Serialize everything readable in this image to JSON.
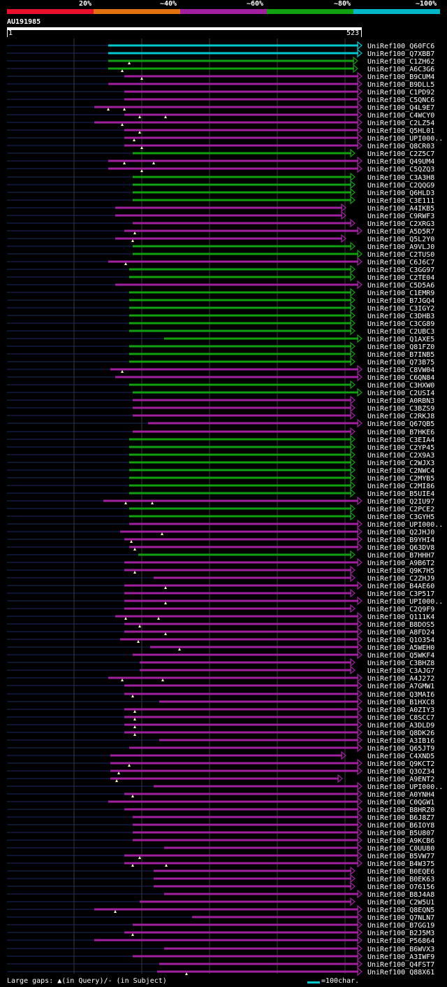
{
  "legend": [
    {
      "label": "20%",
      "color": "#e8102a"
    },
    {
      "label": "~40%",
      "color": "#e07010"
    },
    {
      "label": "~60%",
      "color": "#a020a0"
    },
    {
      "label": "~80%",
      "color": "#10a010"
    },
    {
      "label": "~100%",
      "color": "#00b8c8"
    }
  ],
  "query": {
    "name": "AU191985",
    "start": "1",
    "end": "523"
  },
  "footer": {
    "gaps_text": "Large gaps: ▲(in Query)/- (in Subject)",
    "scale_text": "=100char."
  },
  "hits": [
    {
      "label": "UniRef100_Q60FC6",
      "color": "#00c8d0",
      "s": 155,
      "e": 518,
      "m": []
    },
    {
      "label": "UniRef100_Q7XBB7",
      "color": "#00c8d0",
      "s": 155,
      "e": 518,
      "m": []
    },
    {
      "label": "UniRef100_C1ZH62",
      "color": "#10a010",
      "s": 155,
      "e": 512,
      "m": [
        185
      ]
    },
    {
      "label": "UniRef100_A6C3G6",
      "color": "#10a010",
      "s": 155,
      "e": 512,
      "m": [
        175
      ]
    },
    {
      "label": "UniRef100_B9CUM4",
      "color": "#a020a0",
      "s": 178,
      "e": 518,
      "m": [
        203
      ]
    },
    {
      "label": "UniRef100_B9DLL5",
      "color": "#a020a0",
      "s": 155,
      "e": 518,
      "m": []
    },
    {
      "label": "UniRef100_C1PD92",
      "color": "#a020a0",
      "s": 178,
      "e": 518,
      "m": []
    },
    {
      "label": "UniRef100_C5QNC6",
      "color": "#a020a0",
      "s": 178,
      "e": 518,
      "m": []
    },
    {
      "label": "UniRef100_Q4L9E7",
      "color": "#a020a0",
      "s": 135,
      "e": 518,
      "m": [
        155,
        178
      ]
    },
    {
      "label": "UniRef100_C4WCY0",
      "color": "#a020a0",
      "s": 178,
      "e": 518,
      "m": [
        200,
        237
      ]
    },
    {
      "label": "UniRef100_C2LZ54",
      "color": "#a020a0",
      "s": 135,
      "e": 518,
      "m": [
        175
      ]
    },
    {
      "label": "UniRef100_Q5HL01",
      "color": "#a020a0",
      "s": 178,
      "e": 518,
      "m": [
        200
      ]
    },
    {
      "label": "UniRef100_UPI000..",
      "color": "#a020a0",
      "s": 178,
      "e": 518,
      "m": [
        192
      ]
    },
    {
      "label": "UniRef100_Q8CR03",
      "color": "#a020a0",
      "s": 178,
      "e": 518,
      "m": [
        203
      ]
    },
    {
      "label": "UniRef100_C2Z5C7",
      "color": "#10a010",
      "s": 190,
      "e": 508,
      "m": []
    },
    {
      "label": "UniRef100_Q49UM4",
      "color": "#a020a0",
      "s": 155,
      "e": 518,
      "m": [
        178,
        220
      ]
    },
    {
      "label": "UniRef100_C5QZQ3",
      "color": "#a020a0",
      "s": 155,
      "e": 518,
      "m": [
        203
      ]
    },
    {
      "label": "UniRef100_C3A3H8",
      "color": "#10a010",
      "s": 190,
      "e": 508,
      "m": []
    },
    {
      "label": "UniRef100_C2QQG9",
      "color": "#10a010",
      "s": 190,
      "e": 508,
      "m": []
    },
    {
      "label": "UniRef100_Q6HLD3",
      "color": "#10a010",
      "s": 190,
      "e": 508,
      "m": []
    },
    {
      "label": "UniRef100_C3E111",
      "color": "#10a010",
      "s": 190,
      "e": 508,
      "m": []
    },
    {
      "label": "UniRef100_A4IKB5",
      "color": "#a020a0",
      "s": 165,
      "e": 495,
      "m": []
    },
    {
      "label": "UniRef100_C9RWF3",
      "color": "#a020a0",
      "s": 165,
      "e": 495,
      "m": []
    },
    {
      "label": "UniRef100_C2XRG3",
      "color": "#a020a0",
      "s": 190,
      "e": 508,
      "m": []
    },
    {
      "label": "UniRef100_A5D5R7",
      "color": "#a020a0",
      "s": 178,
      "e": 518,
      "m": [
        193
      ]
    },
    {
      "label": "UniRef100_Q5L2Y0",
      "color": "#a020a0",
      "s": 165,
      "e": 495,
      "m": [
        190
      ]
    },
    {
      "label": "UniRef100_A9VLJ0",
      "color": "#10a010",
      "s": 190,
      "e": 508,
      "m": []
    },
    {
      "label": "UniRef100_C2TUS0",
      "color": "#10a010",
      "s": 190,
      "e": 518,
      "m": []
    },
    {
      "label": "UniRef100_C6J6C7",
      "color": "#a020a0",
      "s": 155,
      "e": 518,
      "m": [
        180
      ]
    },
    {
      "label": "UniRef100_C3GG97",
      "color": "#10a010",
      "s": 185,
      "e": 508,
      "m": []
    },
    {
      "label": "UniRef100_C2TE04",
      "color": "#10a010",
      "s": 185,
      "e": 508,
      "m": []
    },
    {
      "label": "UniRef100_C5D5A6",
      "color": "#a020a0",
      "s": 165,
      "e": 518,
      "m": []
    },
    {
      "label": "UniRef100_C1EMR9",
      "color": "#10a010",
      "s": 185,
      "e": 508,
      "m": []
    },
    {
      "label": "UniRef100_B7JGQ4",
      "color": "#10a010",
      "s": 185,
      "e": 508,
      "m": []
    },
    {
      "label": "UniRef100_C3IGY2",
      "color": "#10a010",
      "s": 185,
      "e": 508,
      "m": []
    },
    {
      "label": "UniRef100_C3DHB3",
      "color": "#10a010",
      "s": 185,
      "e": 508,
      "m": []
    },
    {
      "label": "UniRef100_C3CG89",
      "color": "#10a010",
      "s": 185,
      "e": 508,
      "m": []
    },
    {
      "label": "UniRef100_C2UBC3",
      "color": "#10a010",
      "s": 185,
      "e": 508,
      "m": []
    },
    {
      "label": "UniRef100_Q1AXE5",
      "color": "#10a010",
      "s": 235,
      "e": 518,
      "m": []
    },
    {
      "label": "UniRef100_Q81FZ0",
      "color": "#10a010",
      "s": 185,
      "e": 508,
      "m": []
    },
    {
      "label": "UniRef100_B7INB5",
      "color": "#10a010",
      "s": 185,
      "e": 508,
      "m": []
    },
    {
      "label": "UniRef100_Q73B75",
      "color": "#10a010",
      "s": 185,
      "e": 508,
      "m": []
    },
    {
      "label": "UniRef100_C8VW04",
      "color": "#a020a0",
      "s": 158,
      "e": 518,
      "m": [
        175
      ]
    },
    {
      "label": "UniRef100_C6QN84",
      "color": "#a020a0",
      "s": 165,
      "e": 518,
      "m": []
    },
    {
      "label": "UniRef100_C3HXW0",
      "color": "#10a010",
      "s": 185,
      "e": 508,
      "m": []
    },
    {
      "label": "UniRef100_C2USI4",
      "color": "#10a010",
      "s": 190,
      "e": 518,
      "m": []
    },
    {
      "label": "UniRef100_A0RBN3",
      "color": "#a020a0",
      "s": 190,
      "e": 508,
      "m": []
    },
    {
      "label": "UniRef100_C3BZS9",
      "color": "#a020a0",
      "s": 190,
      "e": 508,
      "m": []
    },
    {
      "label": "UniRef100_C2RKJ8",
      "color": "#a020a0",
      "s": 190,
      "e": 508,
      "m": []
    },
    {
      "label": "UniRef100_Q67QB5",
      "color": "#a020a0",
      "s": 212,
      "e": 518,
      "m": []
    },
    {
      "label": "UniRef100_B7HKE6",
      "color": "#a020a0",
      "s": 190,
      "e": 508,
      "m": []
    },
    {
      "label": "UniRef100_C3EIA4",
      "color": "#10a010",
      "s": 185,
      "e": 508,
      "m": []
    },
    {
      "label": "UniRef100_C2YP45",
      "color": "#10a010",
      "s": 185,
      "e": 508,
      "m": []
    },
    {
      "label": "UniRef100_C2X9A3",
      "color": "#10a010",
      "s": 185,
      "e": 508,
      "m": []
    },
    {
      "label": "UniRef100_C2WJX3",
      "color": "#10a010",
      "s": 185,
      "e": 508,
      "m": []
    },
    {
      "label": "UniRef100_C2NWC4",
      "color": "#10a010",
      "s": 185,
      "e": 508,
      "m": []
    },
    {
      "label": "UniRef100_C2MYB5",
      "color": "#10a010",
      "s": 185,
      "e": 508,
      "m": []
    },
    {
      "label": "UniRef100_C2MI86",
      "color": "#10a010",
      "s": 185,
      "e": 508,
      "m": []
    },
    {
      "label": "UniRef100_B5UIE4",
      "color": "#10a010",
      "s": 185,
      "e": 508,
      "m": []
    },
    {
      "label": "UniRef100_Q2IU97",
      "color": "#a020a0",
      "s": 148,
      "e": 518,
      "m": [
        180,
        218
      ]
    },
    {
      "label": "UniRef100_C2PCE2",
      "color": "#10a010",
      "s": 185,
      "e": 508,
      "m": []
    },
    {
      "label": "UniRef100_C3GYH5",
      "color": "#10a010",
      "s": 185,
      "e": 508,
      "m": []
    },
    {
      "label": "UniRef100_UPI000..",
      "color": "#a020a0",
      "s": 185,
      "e": 518,
      "m": []
    },
    {
      "label": "UniRef100_Q2JHJ0",
      "color": "#a020a0",
      "s": 172,
      "e": 518,
      "m": [
        232
      ]
    },
    {
      "label": "UniRef100_B9YHI4",
      "color": "#a020a0",
      "s": 178,
      "e": 518,
      "m": [
        188
      ]
    },
    {
      "label": "UniRef100_Q63DV8",
      "color": "#a020a0",
      "s": 185,
      "e": 518,
      "m": [
        193
      ]
    },
    {
      "label": "UniRef100_B7HHH7",
      "color": "#10a010",
      "s": 198,
      "e": 508,
      "m": []
    },
    {
      "label": "UniRef100_A9B6T2",
      "color": "#a020a0",
      "s": 178,
      "e": 518,
      "m": []
    },
    {
      "label": "UniRef100_Q9K7H5",
      "color": "#a020a0",
      "s": 178,
      "e": 508,
      "m": [
        193
      ]
    },
    {
      "label": "UniRef100_C2ZHJ9",
      "color": "#a020a0",
      "s": 220,
      "e": 508,
      "m": []
    },
    {
      "label": "UniRef100_B4AE60",
      "color": "#a020a0",
      "s": 178,
      "e": 518,
      "m": [
        237
      ]
    },
    {
      "label": "UniRef100_C3P517",
      "color": "#a020a0",
      "s": 178,
      "e": 508,
      "m": []
    },
    {
      "label": "UniRef100_UPI000..",
      "color": "#a020a0",
      "s": 178,
      "e": 518,
      "m": [
        237
      ]
    },
    {
      "label": "UniRef100_C2Q9F9",
      "color": "#a020a0",
      "s": 178,
      "e": 508,
      "m": []
    },
    {
      "label": "UniRef100_Q111K4",
      "color": "#a020a0",
      "s": 165,
      "e": 518,
      "m": [
        180,
        227
      ]
    },
    {
      "label": "UniRef100_B8DOS5",
      "color": "#a020a0",
      "s": 178,
      "e": 518,
      "m": [
        200
      ]
    },
    {
      "label": "UniRef100_A8FD24",
      "color": "#a020a0",
      "s": 178,
      "e": 518,
      "m": [
        237
      ]
    },
    {
      "label": "UniRef100_Q1O354",
      "color": "#a020a0",
      "s": 172,
      "e": 518,
      "m": [
        198
      ]
    },
    {
      "label": "UniRef100_A5WEH0",
      "color": "#a020a0",
      "s": 215,
      "e": 518,
      "m": [
        257
      ]
    },
    {
      "label": "UniRef100_Q5WKF4",
      "color": "#a020a0",
      "s": 190,
      "e": 518,
      "m": []
    },
    {
      "label": "UniRef100_C3BHZ8",
      "color": "#a020a0",
      "s": 200,
      "e": 508,
      "m": []
    },
    {
      "label": "UniRef100_C3AJG7",
      "color": "#a020a0",
      "s": 200,
      "e": 508,
      "m": []
    },
    {
      "label": "UniRef100_A4J272",
      "color": "#a020a0",
      "s": 155,
      "e": 518,
      "m": [
        175,
        233
      ]
    },
    {
      "label": "UniRef100_A7GMW1",
      "color": "#a020a0",
      "s": 178,
      "e": 518,
      "m": []
    },
    {
      "label": "UniRef100_Q3MAI6",
      "color": "#a020a0",
      "s": 178,
      "e": 518,
      "m": [
        190
      ]
    },
    {
      "label": "UniRef100_B1HXC8",
      "color": "#a020a0",
      "s": 228,
      "e": 518,
      "m": []
    },
    {
      "label": "UniRef100_A0ZIY3",
      "color": "#a020a0",
      "s": 178,
      "e": 518,
      "m": [
        193
      ]
    },
    {
      "label": "UniRef100_C8SCC7",
      "color": "#a020a0",
      "s": 178,
      "e": 518,
      "m": [
        193
      ]
    },
    {
      "label": "UniRef100_A3DLD9",
      "color": "#a020a0",
      "s": 178,
      "e": 518,
      "m": [
        193
      ]
    },
    {
      "label": "UniRef100_Q8DK26",
      "color": "#a020a0",
      "s": 178,
      "e": 518,
      "m": [
        193
      ]
    },
    {
      "label": "UniRef100_A3IB16",
      "color": "#a020a0",
      "s": 228,
      "e": 518,
      "m": []
    },
    {
      "label": "UniRef100_Q65JT9",
      "color": "#a020a0",
      "s": 185,
      "e": 518,
      "m": []
    },
    {
      "label": "UniRef100_C4XND5",
      "color": "#a020a0",
      "s": 158,
      "e": 495,
      "m": []
    },
    {
      "label": "UniRef100_Q9KCT2",
      "color": "#a020a0",
      "s": 158,
      "e": 518,
      "m": [
        185
      ]
    },
    {
      "label": "UniRef100_Q3OZ34",
      "color": "#a020a0",
      "s": 158,
      "e": 518,
      "m": [
        170
      ]
    },
    {
      "label": "UniRef100_A9ENT2",
      "color": "#a020a0",
      "s": 158,
      "e": 490,
      "m": [
        167
      ]
    },
    {
      "label": "UniRef100_UPI000..",
      "color": "#a020a0",
      "s": 220,
      "e": 518,
      "m": []
    },
    {
      "label": "UniRef100_A0YNH4",
      "color": "#a020a0",
      "s": 178,
      "e": 518,
      "m": [
        190
      ]
    },
    {
      "label": "UniRef100_C0QGW1",
      "color": "#a020a0",
      "s": 155,
      "e": 518,
      "m": []
    },
    {
      "label": "UniRef100_B8HRZ0",
      "color": "#a020a0",
      "s": 178,
      "e": 518,
      "m": []
    },
    {
      "label": "UniRef100_B6J8Z7",
      "color": "#a020a0",
      "s": 190,
      "e": 518,
      "m": []
    },
    {
      "label": "UniRef100_B6IOY8",
      "color": "#a020a0",
      "s": 190,
      "e": 518,
      "m": []
    },
    {
      "label": "UniRef100_B5U807",
      "color": "#a020a0",
      "s": 190,
      "e": 518,
      "m": []
    },
    {
      "label": "UniRef100_A9KCB6",
      "color": "#a020a0",
      "s": 190,
      "e": 518,
      "m": []
    },
    {
      "label": "UniRef100_C0UU80",
      "color": "#a020a0",
      "s": 235,
      "e": 518,
      "m": []
    },
    {
      "label": "UniRef100_B5VW77",
      "color": "#a020a0",
      "s": 178,
      "e": 518,
      "m": [
        200
      ]
    },
    {
      "label": "UniRef100_B4W375",
      "color": "#a020a0",
      "s": 178,
      "e": 518,
      "m": [
        190,
        238
      ]
    },
    {
      "label": "UniRef100_B0EQE6",
      "color": "#a020a0",
      "s": 220,
      "e": 508,
      "m": []
    },
    {
      "label": "UniRef100_B0EK63",
      "color": "#a020a0",
      "s": 220,
      "e": 508,
      "m": []
    },
    {
      "label": "UniRef100_O76156",
      "color": "#a020a0",
      "s": 220,
      "e": 508,
      "m": []
    },
    {
      "label": "UniRef100_B8J4A8",
      "color": "#a020a0",
      "s": 235,
      "e": 518,
      "m": []
    },
    {
      "label": "UniRef100_C2W5U1",
      "color": "#a020a0",
      "s": 200,
      "e": 508,
      "m": []
    },
    {
      "label": "UniRef100_Q8EQN5",
      "color": "#a020a0",
      "s": 135,
      "e": 518,
      "m": [
        165
      ]
    },
    {
      "label": "UniRef100_Q7NLN7",
      "color": "#a020a0",
      "s": 275,
      "e": 518,
      "m": []
    },
    {
      "label": "UniRef100_B7GG19",
      "color": "#a020a0",
      "s": 190,
      "e": 518,
      "m": []
    },
    {
      "label": "UniRef100_B2J5M3",
      "color": "#a020a0",
      "s": 178,
      "e": 518,
      "m": [
        190
      ]
    },
    {
      "label": "UniRef100_P56864",
      "color": "#a020a0",
      "s": 135,
      "e": 518,
      "m": []
    },
    {
      "label": "UniRef100_B6WVX3",
      "color": "#a020a0",
      "s": 235,
      "e": 518,
      "m": []
    },
    {
      "label": "UniRef100_A3IWF9",
      "color": "#a020a0",
      "s": 190,
      "e": 518,
      "m": []
    },
    {
      "label": "UniRef100_Q4FST7",
      "color": "#a020a0",
      "s": 228,
      "e": 518,
      "m": []
    },
    {
      "label": "UniRef100_Q88X61",
      "color": "#a020a0",
      "s": 225,
      "e": 518,
      "m": [
        267
      ]
    }
  ]
}
